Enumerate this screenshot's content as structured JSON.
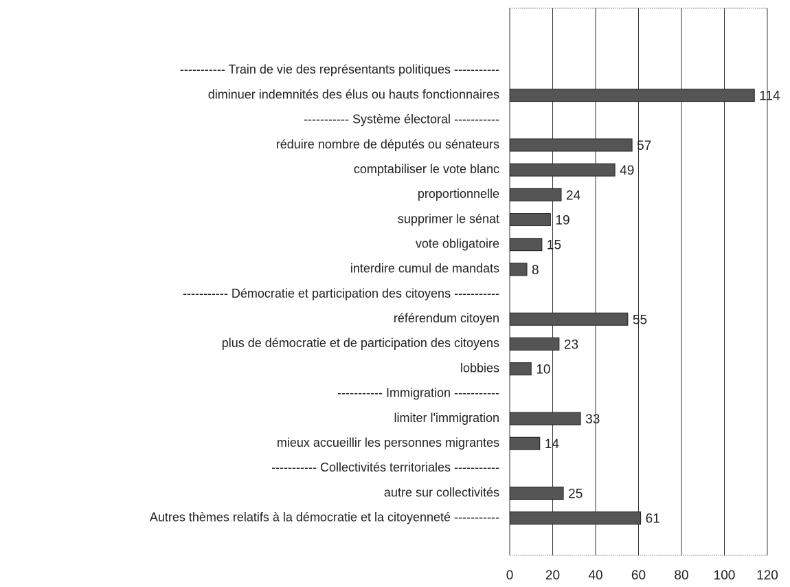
{
  "chart_data": {
    "type": "barh",
    "categories": [
      null,
      null,
      "----------- Train de vie des représentants politiques -----------",
      "diminuer indemnités des élus ou hauts fonctionnaires",
      "----------- Système électoral -----------",
      "réduire nombre de députés ou sénateurs",
      "comptabiliser le vote blanc",
      "proportionnelle",
      "supprimer le sénat",
      "vote obligatoire",
      "interdire cumul de mandats",
      "----------- Démocratie et participation des citoyens  -----------",
      "référendum citoyen",
      "plus de démocratie et de participation des citoyens",
      "lobbies",
      "----------- Immigration  -----------",
      "limiter l'immigration",
      "mieux accueillir les personnes migrantes",
      "----------- Collectivités territoriales  -----------",
      "autre sur collectivités",
      "Autres thèmes relatifs à la démocratie et la citoyenneté  -----------",
      null
    ],
    "values": [
      null,
      null,
      null,
      114,
      null,
      57,
      49,
      24,
      19,
      15,
      8,
      null,
      55,
      23,
      10,
      null,
      33,
      14,
      null,
      25,
      61,
      null
    ],
    "color": "#555555",
    "xlim": [
      0,
      120
    ],
    "xticks": [
      0,
      20,
      40,
      60,
      80,
      100,
      120
    ],
    "grid": true
  }
}
